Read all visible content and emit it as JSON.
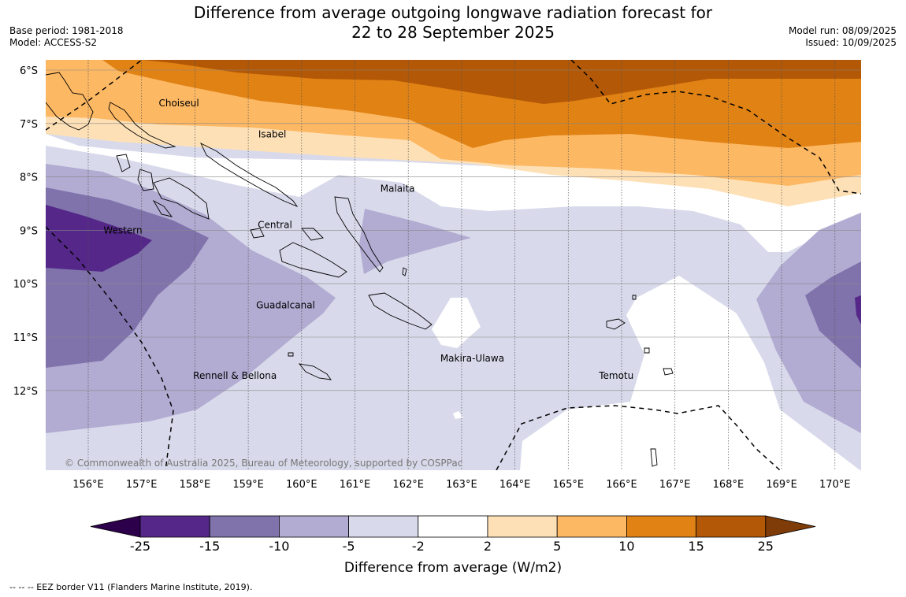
{
  "title_line1": "Difference from average outgoing longwave radiation forecast for",
  "title_line2": "22 to 28 September 2025",
  "base_period": "Base period: 1981-2018",
  "model": "Model: ACCESS-S2",
  "model_run": "Model run: 08/09/2025",
  "issued": "Issued: 10/09/2025",
  "copyright": "© Commonwealth of Australia 2025, Bureau of Meteorology, supported by COSPPac",
  "lat_labels": [
    "6°S",
    "7°S",
    "8°S",
    "9°S",
    "10°S",
    "11°S",
    "12°S"
  ],
  "lon_labels": [
    "156°E",
    "157°E",
    "158°E",
    "159°E",
    "160°E",
    "161°E",
    "162°E",
    "163°E",
    "164°E",
    "165°E",
    "166°E",
    "167°E",
    "168°E",
    "169°E",
    "170°E"
  ],
  "provinces": [
    {
      "name": "Choiseul",
      "lon": 157.7,
      "lat": -6.62
    },
    {
      "name": "Isabel",
      "lon": 159.45,
      "lat": -7.2
    },
    {
      "name": "Malaita",
      "lon": 161.8,
      "lat": -8.22
    },
    {
      "name": "Western",
      "lon": 156.65,
      "lat": -9.0
    },
    {
      "name": "Central",
      "lon": 159.5,
      "lat": -8.9
    },
    {
      "name": "Guadalcanal",
      "lon": 159.7,
      "lat": -10.4
    },
    {
      "name": "Makira-Ulawa",
      "lon": 163.2,
      "lat": -11.4
    },
    {
      "name": "Rennell & Bellona",
      "lon": 158.75,
      "lat": -11.72
    },
    {
      "name": "Temotu",
      "lon": 165.9,
      "lat": -11.72
    }
  ],
  "colorbar": {
    "label": "Difference from average (W/m2)",
    "ticks": [
      "-25",
      "-15",
      "-10",
      "-5",
      "-2",
      "2",
      "5",
      "10",
      "15",
      "25"
    ],
    "colors": [
      "#542788",
      "#8073ac",
      "#b2abd2",
      "#d8daeb",
      "#ffffff",
      "#fee0b6",
      "#fdb863",
      "#e08214",
      "#b35806"
    ],
    "under_color": "#2d004b",
    "over_color": "#7f3b08"
  },
  "footnote": "--  --  -- EEZ border V11 (Flanders Marine Institute, 2019)."
}
